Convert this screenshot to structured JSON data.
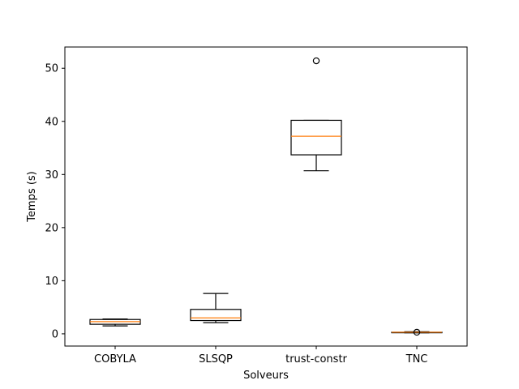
{
  "chart_data": {
    "type": "box",
    "xlabel": "Solveurs",
    "ylabel": "Temps (s)",
    "categories": [
      "COBYLA",
      "SLSQP",
      "trust-constr",
      "TNC"
    ],
    "boxes": [
      {
        "name": "COBYLA",
        "whisker_low": 1.5,
        "q1": 1.8,
        "median": 2.3,
        "q3": 2.7,
        "whisker_high": 2.8,
        "outliers": []
      },
      {
        "name": "SLSQP",
        "whisker_low": 2.1,
        "q1": 2.5,
        "median": 3.0,
        "q3": 4.6,
        "whisker_high": 7.6,
        "outliers": []
      },
      {
        "name": "trust-constr",
        "whisker_low": 30.7,
        "q1": 33.7,
        "median": 37.2,
        "q3": 40.2,
        "whisker_high": 40.2,
        "outliers": [
          51.4
        ]
      },
      {
        "name": "TNC",
        "whisker_low": 0.2,
        "q1": 0.2,
        "median": 0.3,
        "q3": 0.3,
        "whisker_high": 0.4,
        "outliers": [
          0.3
        ]
      }
    ],
    "ylim": [
      -2.3,
      54.0
    ],
    "yticks": [
      0,
      10,
      20,
      30,
      40,
      50
    ],
    "grid": false,
    "colors": {
      "box": "#000000",
      "median": "#ff7f0e"
    }
  }
}
